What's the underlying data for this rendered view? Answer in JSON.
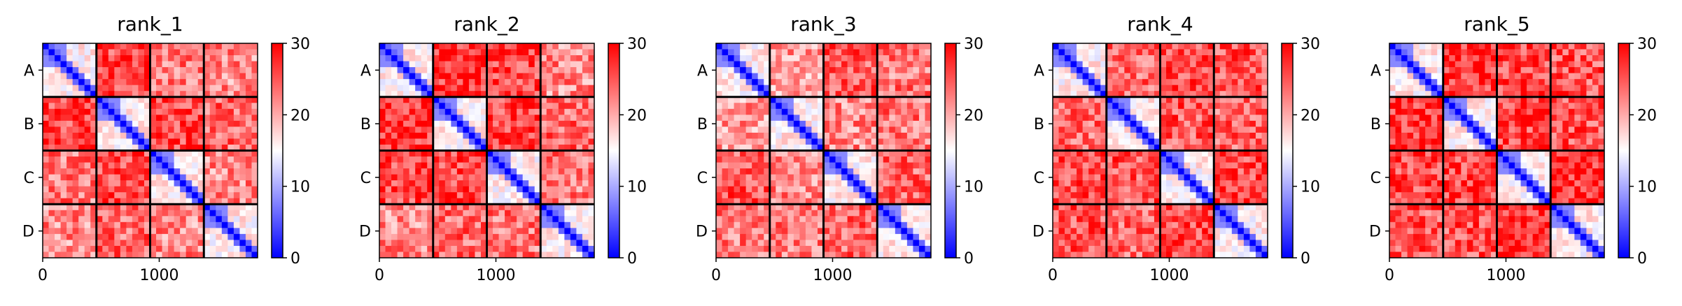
{
  "chart_data": [
    {
      "type": "heatmap",
      "title": "rank_1",
      "chains": [
        "A",
        "B",
        "C",
        "D"
      ],
      "chain_lengths": [
        461,
        461,
        461,
        461
      ],
      "xticks": [
        0,
        1000
      ],
      "xtick_labels": [
        "0",
        "1000"
      ],
      "xlim": [
        0,
        1844
      ],
      "colorbar": {
        "min": 0,
        "max": 30,
        "ticks": [
          0,
          10,
          20,
          30
        ],
        "tick_labels": [
          "0",
          "10",
          "20",
          "30"
        ],
        "colormap": "bwr"
      },
      "values": {
        "intra_chain_diagonal": 0,
        "intra_chain_core": 6,
        "intra_chain_periphery": 16,
        "inter_chain": {
          "A-B": 26,
          "A-C": 23,
          "A-D": 22,
          "B-C": 26,
          "B-D": 24,
          "C-D": 22
        }
      }
    },
    {
      "type": "heatmap",
      "title": "rank_2",
      "chains": [
        "A",
        "B",
        "C",
        "D"
      ],
      "chain_lengths": [
        461,
        461,
        461,
        461
      ],
      "xticks": [
        0,
        1000
      ],
      "xtick_labels": [
        "0",
        "1000"
      ],
      "xlim": [
        0,
        1844
      ],
      "colorbar": {
        "min": 0,
        "max": 30,
        "ticks": [
          0,
          10,
          20,
          30
        ],
        "tick_labels": [
          "0",
          "10",
          "20",
          "30"
        ],
        "colormap": "bwr"
      },
      "values": {
        "intra_chain_diagonal": 0,
        "intra_chain_core": 6,
        "intra_chain_periphery": 16,
        "inter_chain": {
          "A-B": 27,
          "A-C": 26,
          "A-D": 22,
          "B-C": 26,
          "B-D": 24,
          "C-D": 23
        }
      }
    },
    {
      "type": "heatmap",
      "title": "rank_3",
      "chains": [
        "A",
        "B",
        "C",
        "D"
      ],
      "chain_lengths": [
        461,
        461,
        461,
        461
      ],
      "xticks": [
        0,
        1000
      ],
      "xtick_labels": [
        "0",
        "1000"
      ],
      "xlim": [
        0,
        1844
      ],
      "colorbar": {
        "min": 0,
        "max": 30,
        "ticks": [
          0,
          10,
          20,
          30
        ],
        "tick_labels": [
          "0",
          "10",
          "20",
          "30"
        ],
        "colormap": "bwr"
      },
      "values": {
        "intra_chain_diagonal": 0,
        "intra_chain_core": 6,
        "intra_chain_periphery": 16,
        "inter_chain": {
          "A-B": 21,
          "A-C": 25,
          "A-D": 23,
          "B-C": 22,
          "B-D": 23,
          "C-D": 24
        }
      }
    },
    {
      "type": "heatmap",
      "title": "rank_4",
      "chains": [
        "A",
        "B",
        "C",
        "D"
      ],
      "chain_lengths": [
        461,
        461,
        461,
        461
      ],
      "xticks": [
        0,
        1000
      ],
      "xtick_labels": [
        "0",
        "1000"
      ],
      "xlim": [
        0,
        1844
      ],
      "colorbar": {
        "min": 0,
        "max": 30,
        "ticks": [
          0,
          10,
          20,
          30
        ],
        "tick_labels": [
          "0",
          "10",
          "20",
          "30"
        ],
        "colormap": "bwr"
      },
      "values": {
        "intra_chain_diagonal": 0,
        "intra_chain_core": 6,
        "intra_chain_periphery": 16,
        "inter_chain": {
          "A-B": 24,
          "A-C": 26,
          "A-D": 25,
          "B-C": 25,
          "B-D": 24,
          "C-D": 26
        }
      }
    },
    {
      "type": "heatmap",
      "title": "rank_5",
      "chains": [
        "A",
        "B",
        "C",
        "D"
      ],
      "chain_lengths": [
        461,
        461,
        461,
        461
      ],
      "xticks": [
        0,
        1000
      ],
      "xtick_labels": [
        "0",
        "1000"
      ],
      "xlim": [
        0,
        1844
      ],
      "colorbar": {
        "min": 0,
        "max": 30,
        "ticks": [
          0,
          10,
          20,
          30
        ],
        "tick_labels": [
          "0",
          "10",
          "20",
          "30"
        ],
        "colormap": "bwr"
      },
      "values": {
        "intra_chain_diagonal": 0,
        "intra_chain_core": 6,
        "intra_chain_periphery": 16,
        "inter_chain": {
          "A-B": 27,
          "A-C": 26,
          "A-D": 25,
          "B-C": 26,
          "B-D": 25,
          "C-D": 27
        }
      }
    }
  ]
}
